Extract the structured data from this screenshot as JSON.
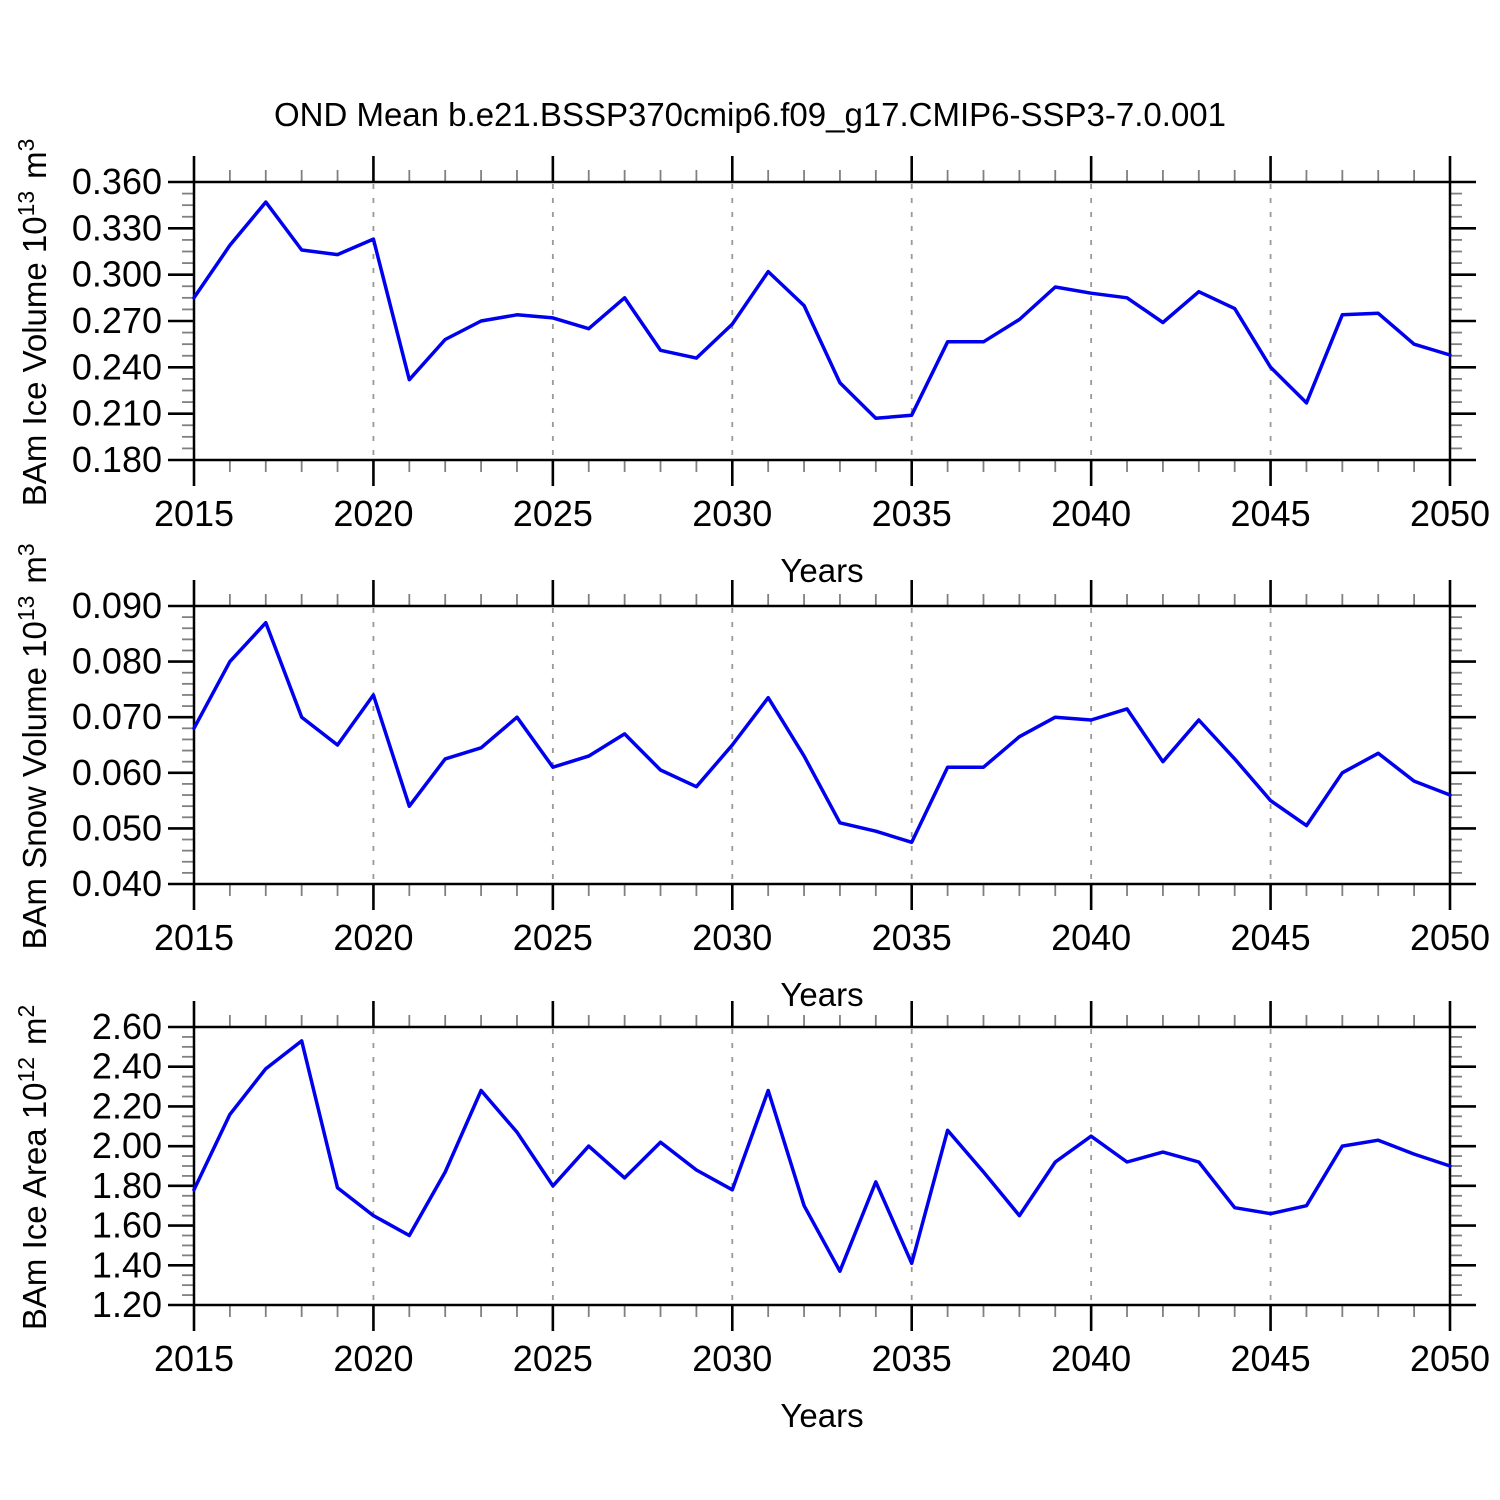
{
  "title": "OND Mean b.e21.BSSP370cmip6.f09_g17.CMIP6-SSP3-7.0.001",
  "colors": {
    "line": "#0000EE",
    "frame": "#000000",
    "minor_tick": "#808080",
    "gridline": "#999999",
    "background": "#ffffff"
  },
  "chart_data": [
    {
      "type": "line",
      "name": "ice-volume",
      "ylabel": "BAm Ice Volume 10^13 m^3",
      "xlabel": "Years",
      "x": [
        2015,
        2016,
        2017,
        2018,
        2019,
        2020,
        2021,
        2022,
        2023,
        2024,
        2025,
        2026,
        2027,
        2028,
        2029,
        2030,
        2031,
        2032,
        2033,
        2034,
        2035,
        2036,
        2037,
        2038,
        2039,
        2040,
        2041,
        2042,
        2043,
        2044,
        2045,
        2046,
        2047,
        2048,
        2049,
        2050
      ],
      "series": [
        {
          "name": "BAm Ice Volume",
          "values": [
            0.285,
            0.319,
            0.347,
            0.316,
            0.313,
            0.323,
            0.232,
            0.258,
            0.27,
            0.274,
            0.272,
            0.265,
            0.285,
            0.251,
            0.246,
            0.268,
            0.302,
            0.28,
            0.23,
            0.207,
            0.209,
            0.2565,
            0.2565,
            0.271,
            0.292,
            0.288,
            0.285,
            0.269,
            0.289,
            0.278,
            0.24,
            0.217,
            0.274,
            0.275,
            0.255,
            0.248
          ]
        }
      ],
      "ylim": [
        0.18,
        0.36
      ],
      "yticks": [
        0.18,
        0.21,
        0.24,
        0.27,
        0.3,
        0.33,
        0.36
      ],
      "ytick_labels": [
        "0.180",
        "0.210",
        "0.240",
        "0.270",
        "0.300",
        "0.330",
        "0.360"
      ],
      "yminor_step": 0.0075,
      "xlim": [
        2015,
        2050
      ],
      "xticks": [
        2015,
        2020,
        2025,
        2030,
        2035,
        2040,
        2045,
        2050
      ],
      "xtick_labels": [
        "2015",
        "2020",
        "2025",
        "2030",
        "2035",
        "2040",
        "2045",
        "2050"
      ],
      "xminor_step": 1,
      "grid_x": [
        2020,
        2025,
        2030,
        2035,
        2040,
        2045
      ],
      "grid": true,
      "legend": null,
      "line_color": "#0000EE"
    },
    {
      "type": "line",
      "name": "snow-volume",
      "ylabel": "BAm Snow Volume 10^13 m^3",
      "xlabel": "Years",
      "x": [
        2015,
        2016,
        2017,
        2018,
        2019,
        2020,
        2021,
        2022,
        2023,
        2024,
        2025,
        2026,
        2027,
        2028,
        2029,
        2030,
        2031,
        2032,
        2033,
        2034,
        2035,
        2036,
        2037,
        2038,
        2039,
        2040,
        2041,
        2042,
        2043,
        2044,
        2045,
        2046,
        2047,
        2048,
        2049,
        2050
      ],
      "series": [
        {
          "name": "BAm Snow Volume",
          "values": [
            0.068,
            0.08,
            0.087,
            0.07,
            0.065,
            0.074,
            0.054,
            0.0625,
            0.0645,
            0.07,
            0.061,
            0.063,
            0.067,
            0.0605,
            0.0575,
            0.065,
            0.0735,
            0.063,
            0.051,
            0.0495,
            0.0475,
            0.061,
            0.061,
            0.0665,
            0.07,
            0.0695,
            0.0715,
            0.062,
            0.0695,
            0.0625,
            0.055,
            0.0505,
            0.06,
            0.0635,
            0.0585,
            0.056
          ]
        }
      ],
      "ylim": [
        0.04,
        0.09
      ],
      "yticks": [
        0.04,
        0.05,
        0.06,
        0.07,
        0.08,
        0.09
      ],
      "ytick_labels": [
        "0.040",
        "0.050",
        "0.060",
        "0.070",
        "0.080",
        "0.090"
      ],
      "yminor_step": 0.002,
      "xlim": [
        2015,
        2050
      ],
      "xticks": [
        2015,
        2020,
        2025,
        2030,
        2035,
        2040,
        2045,
        2050
      ],
      "xtick_labels": [
        "2015",
        "2020",
        "2025",
        "2030",
        "2035",
        "2040",
        "2045",
        "2050"
      ],
      "xminor_step": 1,
      "grid_x": [
        2020,
        2025,
        2030,
        2035,
        2040,
        2045
      ],
      "grid": true,
      "legend": null,
      "line_color": "#0000EE"
    },
    {
      "type": "line",
      "name": "ice-area",
      "ylabel": "BAm Ice Area 10^12 m^2",
      "xlabel": "Years",
      "x": [
        2015,
        2016,
        2017,
        2018,
        2019,
        2020,
        2021,
        2022,
        2023,
        2024,
        2025,
        2026,
        2027,
        2028,
        2029,
        2030,
        2031,
        2032,
        2033,
        2034,
        2035,
        2036,
        2037,
        2038,
        2039,
        2040,
        2041,
        2042,
        2043,
        2044,
        2045,
        2046,
        2047,
        2048,
        2049,
        2050
      ],
      "series": [
        {
          "name": "BAm Ice Area",
          "values": [
            1.78,
            2.16,
            2.39,
            2.53,
            1.79,
            1.65,
            1.55,
            1.87,
            2.28,
            2.07,
            1.8,
            2.0,
            1.84,
            2.02,
            1.88,
            1.78,
            2.28,
            1.7,
            1.37,
            1.82,
            1.41,
            2.08,
            1.87,
            1.65,
            1.92,
            2.05,
            1.92,
            1.97,
            1.92,
            1.69,
            1.66,
            1.7,
            2.0,
            2.03,
            1.96,
            1.9
          ]
        }
      ],
      "ylim": [
        1.2,
        2.6
      ],
      "yticks": [
        1.2,
        1.4,
        1.6,
        1.8,
        2.0,
        2.2,
        2.4,
        2.6
      ],
      "ytick_labels": [
        "1.20",
        "1.40",
        "1.60",
        "1.80",
        "2.00",
        "2.20",
        "2.40",
        "2.60"
      ],
      "yminor_step": 0.05,
      "xlim": [
        2015,
        2050
      ],
      "xticks": [
        2015,
        2020,
        2025,
        2030,
        2035,
        2040,
        2045,
        2050
      ],
      "xtick_labels": [
        "2015",
        "2020",
        "2025",
        "2030",
        "2035",
        "2040",
        "2045",
        "2050"
      ],
      "xminor_step": 1,
      "grid_x": [
        2020,
        2025,
        2030,
        2035,
        2040,
        2045
      ],
      "grid": true,
      "legend": null,
      "line_color": "#0000EE"
    }
  ]
}
